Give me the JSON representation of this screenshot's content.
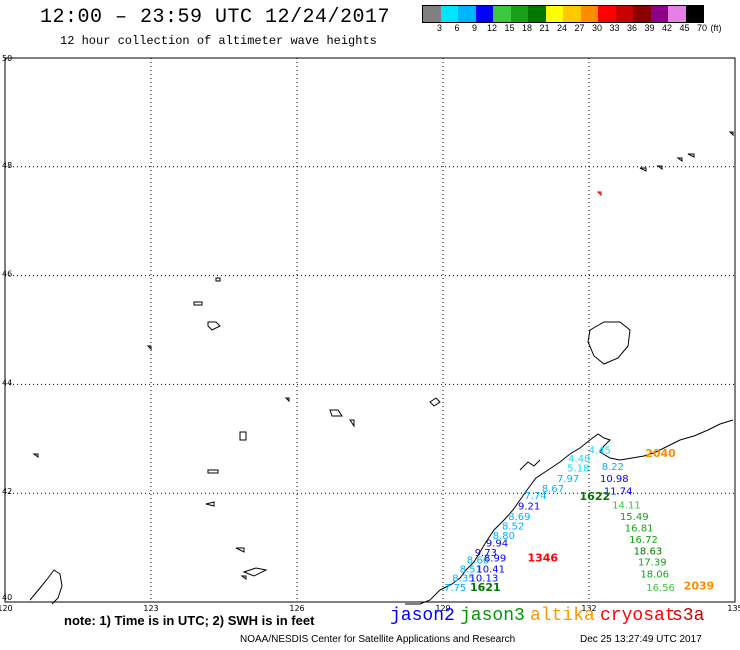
{
  "header": {
    "title": "12:00 – 23:59 UTC 12/24/2017",
    "subtitle": "12 hour collection of altimeter wave heights"
  },
  "legend": {
    "colors": [
      "#808080",
      "#00e5ff",
      "#00b4ff",
      "#0000ff",
      "#3cc83c",
      "#18a018",
      "#007800",
      "#ffff00",
      "#ffc800",
      "#ff8c00",
      "#ff0000",
      "#c80000",
      "#8c0000",
      "#8c008c",
      "#e680e6",
      "#000000"
    ],
    "labels": [
      "3",
      "6",
      "9",
      "12",
      "15",
      "18",
      "21",
      "24",
      "27",
      "30",
      "33",
      "36",
      "39",
      "42",
      "45",
      "70",
      "(ft)"
    ]
  },
  "map": {
    "lat_labels": [
      "50",
      "48",
      "46",
      "44",
      "42",
      "40"
    ],
    "lon_labels": [
      "120",
      "123",
      "126",
      "129",
      "132",
      "135"
    ],
    "wave_heights": [
      {
        "text": "4.45",
        "lon": 132.22,
        "lat": 42.8,
        "color": "#00e5ff"
      },
      {
        "text": "4.48",
        "lon": 131.8,
        "lat": 42.65,
        "color": "#00e5ff"
      },
      {
        "text": "2040",
        "lon": 133.47,
        "lat": 42.74,
        "color": "#ff8c00"
      },
      {
        "text": "5.18",
        "lon": 131.78,
        "lat": 42.47,
        "color": "#00e5ff"
      },
      {
        "text": "8.22",
        "lon": 132.49,
        "lat": 42.5,
        "color": "#00b4ff"
      },
      {
        "text": "7.97",
        "lon": 131.57,
        "lat": 42.28,
        "color": "#00b4ff"
      },
      {
        "text": "10.98",
        "lon": 132.52,
        "lat": 42.28,
        "color": "#0000ff"
      },
      {
        "text": "8.67",
        "lon": 131.26,
        "lat": 42.1,
        "color": "#00b4ff"
      },
      {
        "text": "11.74",
        "lon": 132.6,
        "lat": 42.05,
        "color": "#0000ff"
      },
      {
        "text": "7.74",
        "lon": 130.9,
        "lat": 41.97,
        "color": "#00b4ff"
      },
      {
        "text": "1622",
        "lon": 132.12,
        "lat": 41.95,
        "color": "#007800"
      },
      {
        "text": "14.11",
        "lon": 132.77,
        "lat": 41.79,
        "color": "#3cc83c"
      },
      {
        "text": "9.21",
        "lon": 130.77,
        "lat": 41.77,
        "color": "#0000ff"
      },
      {
        "text": "8.69",
        "lon": 130.57,
        "lat": 41.58,
        "color": "#00b4ff"
      },
      {
        "text": "15.49",
        "lon": 132.93,
        "lat": 41.58,
        "color": "#18a018"
      },
      {
        "text": "8.52",
        "lon": 130.44,
        "lat": 41.41,
        "color": "#00b4ff"
      },
      {
        "text": "16.81",
        "lon": 133.03,
        "lat": 41.37,
        "color": "#18a018"
      },
      {
        "text": "8.80",
        "lon": 130.25,
        "lat": 41.23,
        "color": "#00b4ff"
      },
      {
        "text": "16.72",
        "lon": 133.12,
        "lat": 41.16,
        "color": "#18a018"
      },
      {
        "text": "9.94",
        "lon": 130.11,
        "lat": 41.09,
        "color": "#0000ff"
      },
      {
        "text": "9.73",
        "lon": 129.88,
        "lat": 40.92,
        "color": "#0000ff"
      },
      {
        "text": "18.63",
        "lon": 133.21,
        "lat": 40.95,
        "color": "#007800"
      },
      {
        "text": "8.66",
        "lon": 129.72,
        "lat": 40.78,
        "color": "#00b4ff"
      },
      {
        "text": "8.99",
        "lon": 130.07,
        "lat": 40.82,
        "color": "#0000ff"
      },
      {
        "text": "1346",
        "lon": 131.05,
        "lat": 40.82,
        "color": "#ff0000"
      },
      {
        "text": "17.39",
        "lon": 133.3,
        "lat": 40.74,
        "color": "#18a018"
      },
      {
        "text": "8.51",
        "lon": 129.57,
        "lat": 40.62,
        "color": "#00b4ff"
      },
      {
        "text": "10.41",
        "lon": 129.98,
        "lat": 40.62,
        "color": "#0000ff"
      },
      {
        "text": "18.06",
        "lon": 133.35,
        "lat": 40.52,
        "color": "#18a018"
      },
      {
        "text": "8.35",
        "lon": 129.42,
        "lat": 40.45,
        "color": "#00b4ff"
      },
      {
        "text": "10.13",
        "lon": 129.84,
        "lat": 40.45,
        "color": "#0000ff"
      },
      {
        "text": "7.75",
        "lon": 129.25,
        "lat": 40.28,
        "color": "#00b4ff"
      },
      {
        "text": "1621",
        "lon": 129.87,
        "lat": 40.28,
        "color": "#007800"
      },
      {
        "text": "16.56",
        "lon": 133.47,
        "lat": 40.28,
        "color": "#3cc83c"
      },
      {
        "text": "2039",
        "lon": 134.26,
        "lat": 40.3,
        "color": "#ff8c00"
      }
    ]
  },
  "footer": {
    "note": "note: 1) Time is in UTC; 2) SWH is in feet",
    "satellites": [
      {
        "name": "jason2",
        "color": "#0000ff"
      },
      {
        "name": "jason3",
        "color": "#009600"
      },
      {
        "name": "altika",
        "color": "#ff9600"
      },
      {
        "name": "cryosat",
        "color": "#ff0000"
      },
      {
        "name": "s3a",
        "color": "#c80000"
      }
    ],
    "credit": "NOAA/NESDIS Center for Satellite Applications and Research",
    "generated": "Dec 25 13:27:49 UTC 2017"
  }
}
